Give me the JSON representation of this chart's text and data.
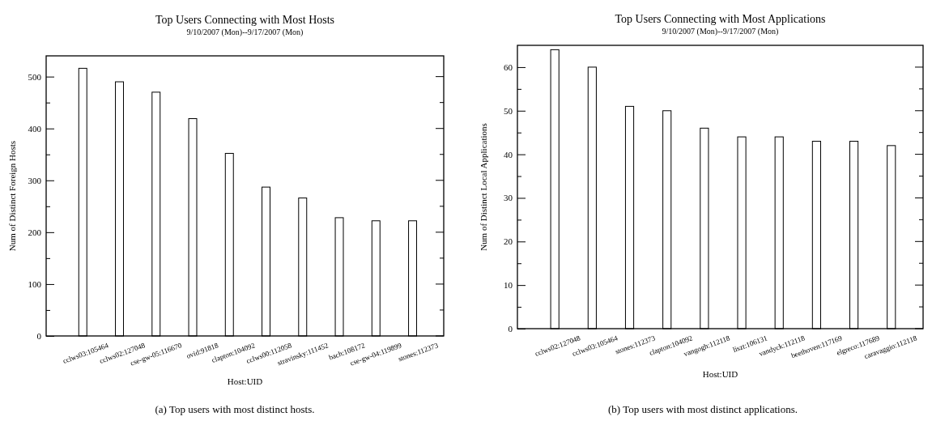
{
  "chart_data": [
    {
      "type": "bar",
      "title": "Top Users Connecting with Most Hosts",
      "subtitle": "9/10/2007 (Mon)--9/17/2007 (Mon)",
      "xlabel": "Host:UID",
      "ylabel": "Num of Distinct Foreign Hosts",
      "categories": [
        "cclws03:105464",
        "cclws02:127048",
        "cse-gw-05:116670",
        "ovid:91818",
        "clapton:104092",
        "cclws00:112058",
        "stravinsky:111452",
        "bach:108172",
        "cse-gw-04:119899",
        "stones:112373"
      ],
      "values": [
        516,
        490,
        470,
        419,
        352,
        287,
        266,
        228,
        222,
        222
      ],
      "color": "#ffffff",
      "ylim": [
        0,
        540
      ],
      "yticks": [
        0,
        {
          "value": 50,
          "label": null
        },
        100,
        {
          "value": 150,
          "label": null
        },
        200,
        {
          "value": 250,
          "label": null
        },
        300,
        {
          "value": 350,
          "label": null
        },
        400,
        {
          "value": 450,
          "label": null
        },
        500
      ],
      "grid": false,
      "annotations": [
        "(a)  Top users with most distinct hosts."
      ]
    },
    {
      "type": "bar",
      "title": "Top Users Connecting with Most Applications",
      "subtitle": "9/10/2007 (Mon)--9/17/2007 (Mon)",
      "xlabel": "Host:UID",
      "ylabel": "Num of Distinct Local Applications",
      "categories": [
        "cclws02:127048",
        "cclws03:105464",
        "stones:112373",
        "clapton:104092",
        "vangogh:112118",
        "liszt:106131",
        "vandyck:112118",
        "beethoven:117169",
        "elgreco:117689",
        "caravaggio:112118"
      ],
      "values": [
        64,
        60,
        51,
        50,
        46,
        44,
        44,
        43,
        43,
        42
      ],
      "color": "#ffffff",
      "ylim": [
        0,
        65
      ],
      "yticks": [
        0,
        {
          "value": 5,
          "label": null
        },
        10,
        {
          "value": 15,
          "label": null
        },
        20,
        {
          "value": 25,
          "label": null
        },
        30,
        {
          "value": 35,
          "label": null
        },
        40,
        {
          "value": 45,
          "label": null
        },
        50,
        {
          "value": 55,
          "label": null
        },
        60
      ],
      "grid": false,
      "annotations": [
        "(b)  Top users with most distinct applications."
      ]
    }
  ]
}
